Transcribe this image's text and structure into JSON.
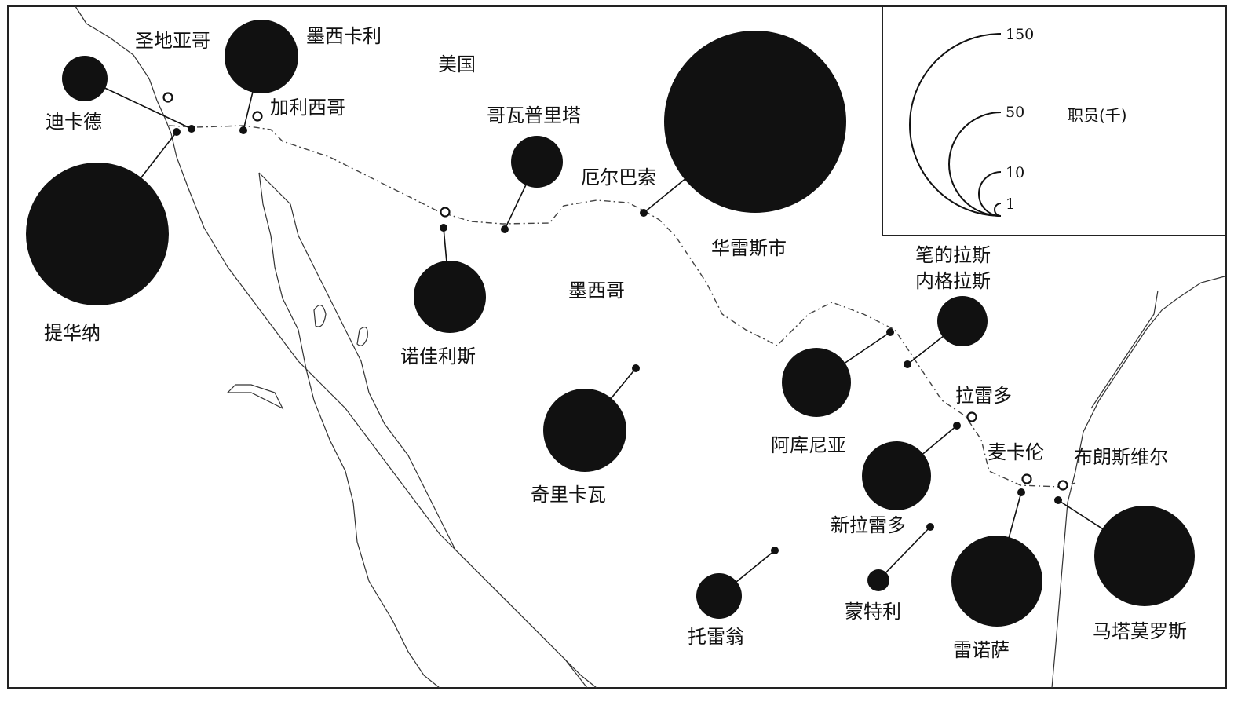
{
  "countries": {
    "usa": "美国",
    "mexico": "墨西哥"
  },
  "cities": {
    "san_diego": "圣地亚哥",
    "mexicali": "墨西卡利",
    "calexico": "加利西哥",
    "tecate": "迪卡德",
    "tijuana": "提华纳",
    "nogales": "诺佳利斯",
    "agua_prieta": "哥瓦普里塔",
    "el_paso": "厄尔巴索",
    "juarez": "华雷斯市",
    "chihuahua": "奇里卡瓦",
    "torreon": "托雷翁",
    "monterrey": "蒙特利",
    "acuna": "阿库尼亚",
    "piedras_negras_1": "笔的拉斯",
    "piedras_negras_2": "内格拉斯",
    "laredo": "拉雷多",
    "nuevo_laredo": "新拉雷多",
    "mcallen": "麦卡伦",
    "brownsville": "布朗斯维尔",
    "reynosa": "雷诺萨",
    "matamoros": "马塔莫罗斯"
  },
  "employment_thousands": {
    "tijuana": 150,
    "juarez": 200,
    "mexicali": 30,
    "tecate": 10,
    "nogales": 25,
    "agua_prieta": 12,
    "chihuahua": 40,
    "acuna": 25,
    "piedras_negras": 12,
    "nuevo_laredo": 25,
    "reynosa": 50,
    "matamoros": 50,
    "torreon": 10,
    "monterrey": 2
  },
  "legend": {
    "title": "职员(千)",
    "values": [
      "150",
      "50",
      "10",
      "1"
    ]
  },
  "colors": {
    "circle": "#111111",
    "border": "#444444",
    "background": "#ffffff"
  }
}
